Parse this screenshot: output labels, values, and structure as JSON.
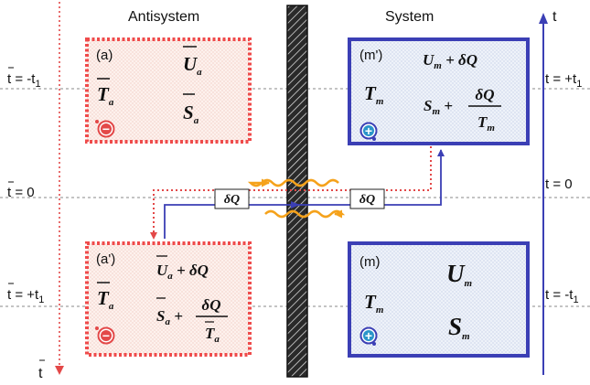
{
  "headers": {
    "antisystem": "Antisystem",
    "system": "System"
  },
  "time_axes": {
    "left_symbol": "t",
    "right_symbol": "t",
    "left_labels": {
      "top": "t = -t",
      "mid": "t = 0",
      "bottom": "t = +t",
      "sub": "1"
    },
    "right_labels": {
      "top": "t = +t",
      "mid": "t = 0",
      "bottom": "t = -t",
      "sub": "1"
    }
  },
  "boxes": {
    "a": {
      "label": "(a)",
      "T": "T",
      "T_sub": "a",
      "U": "U",
      "U_sub": "a",
      "S": "S",
      "S_sub": "a"
    },
    "a2": {
      "label": "(a')",
      "T": "T",
      "T_sub": "a",
      "U": "U",
      "U_sub": "a",
      "U_add": " + δQ",
      "S": "S",
      "S_sub": "a",
      "S_add": " +",
      "frac_num": "δQ",
      "frac_den": "T",
      "frac_den_sub": "a"
    },
    "m2": {
      "label": "(m')",
      "T": "T",
      "T_sub": "m",
      "U": "U",
      "U_sub": "m",
      "U_add": " + δQ",
      "S": "S",
      "S_sub": "m",
      "S_add": " +",
      "frac_num": "δQ",
      "frac_den": "T",
      "frac_den_sub": "m"
    },
    "m": {
      "label": "(m)",
      "T": "T",
      "T_sub": "m",
      "U": "U",
      "U_sub": "m",
      "S": "S",
      "S_sub": "m"
    }
  },
  "flow_labels": {
    "left": "δQ",
    "right": "δQ"
  },
  "particles": {
    "anti": "−",
    "matter": "+"
  },
  "colors": {
    "anti_border": "#ef4b4b",
    "anti_fill": "#fbe7e2",
    "sys_border": "#3b3fb5",
    "sys_fill": "#e4ebf6",
    "time_left": "#e34848",
    "time_right": "#3b3fb5",
    "wave": "#f5a21b",
    "flow_blue": "#3b3fb5",
    "flow_red": "#e34848"
  }
}
